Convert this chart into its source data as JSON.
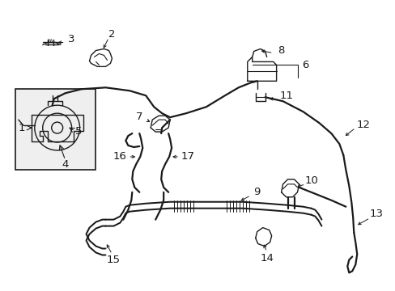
{
  "background_color": "#ffffff",
  "line_color": "#1a1a1a",
  "fig_width": 4.89,
  "fig_height": 3.6,
  "dpi": 100,
  "font_size": 9.5,
  "lw_main": 1.0,
  "lw_hose": 1.6,
  "lw_double": 1.4
}
